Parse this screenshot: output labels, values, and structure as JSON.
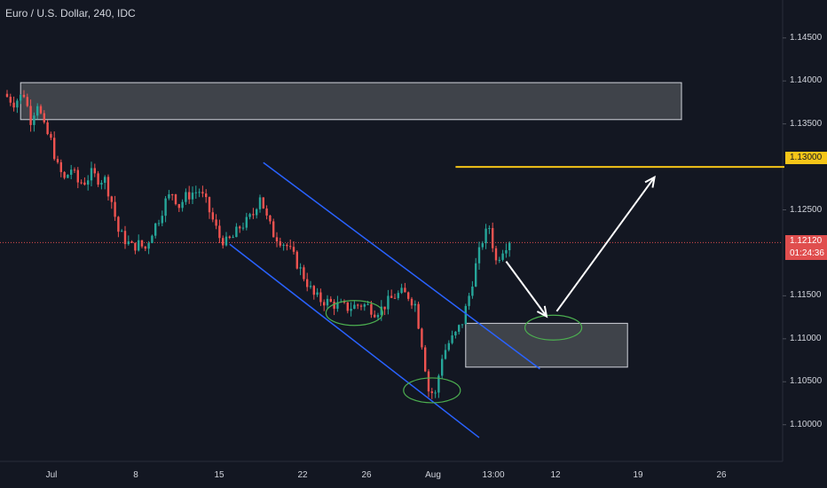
{
  "chart_data": {
    "type": "candlestick",
    "title": "Euro / U.S. Dollar, 240, IDC",
    "ylim": [
      1.0978,
      1.14735
    ],
    "y_ticks": [
      "1.14500",
      "1.14000",
      "1.13500",
      "1.13000",
      "1.12500",
      "1.12120",
      "1.11500",
      "1.11000",
      "1.10500",
      "1.10000"
    ],
    "x_ticks": [
      "Jul",
      "8",
      "15",
      "22",
      "26",
      "Aug",
      "13:00",
      "12",
      "19",
      "26"
    ],
    "grid": false,
    "series": [
      {
        "price_path": [
          [
            0,
            1.1385
          ],
          [
            3,
            1.1375
          ],
          [
            6,
            1.1385
          ],
          [
            8,
            1.1355
          ],
          [
            10,
            1.1375
          ],
          [
            12,
            1.1345
          ],
          [
            14,
            1.133
          ],
          [
            16,
            1.13
          ],
          [
            18,
            1.1285
          ],
          [
            20,
            1.1298
          ],
          [
            22,
            1.1282
          ],
          [
            24,
            1.1283
          ],
          [
            26,
            1.1292
          ],
          [
            28,
            1.1286
          ],
          [
            30,
            1.1285
          ],
          [
            32,
            1.126
          ],
          [
            34,
            1.1225
          ],
          [
            36,
            1.1215
          ],
          [
            38,
            1.1207
          ],
          [
            40,
            1.121
          ],
          [
            42,
            1.1205
          ],
          [
            44,
            1.1225
          ],
          [
            46,
            1.124
          ],
          [
            48,
            1.126
          ],
          [
            50,
            1.127
          ],
          [
            52,
            1.1255
          ],
          [
            54,
            1.1265
          ],
          [
            56,
            1.127
          ],
          [
            58,
            1.1272
          ],
          [
            60,
            1.1258
          ],
          [
            62,
            1.1238
          ],
          [
            64,
            1.1218
          ],
          [
            66,
            1.1212
          ],
          [
            68,
            1.1218
          ],
          [
            70,
            1.123
          ],
          [
            72,
            1.1236
          ],
          [
            74,
            1.1245
          ],
          [
            76,
            1.1268
          ],
          [
            78,
            1.124
          ],
          [
            80,
            1.1222
          ],
          [
            82,
            1.1215
          ],
          [
            84,
            1.1208
          ],
          [
            86,
            1.1195
          ],
          [
            88,
            1.118
          ],
          [
            90,
            1.1165
          ],
          [
            92,
            1.115
          ],
          [
            94,
            1.1145
          ],
          [
            96,
            1.1143
          ],
          [
            98,
            1.114
          ],
          [
            100,
            1.1138
          ],
          [
            102,
            1.1136
          ],
          [
            104,
            1.1138
          ],
          [
            106,
            1.114
          ],
          [
            108,
            1.1138
          ],
          [
            110,
            1.1132
          ],
          [
            112,
            1.1135
          ],
          [
            114,
            1.1143
          ],
          [
            116,
            1.115
          ],
          [
            118,
            1.1153
          ],
          [
            120,
            1.115
          ],
          [
            122,
            1.114
          ],
          [
            124,
            1.1095
          ],
          [
            126,
            1.104
          ],
          [
            128,
            1.1035
          ],
          [
            130,
            1.108
          ],
          [
            132,
            1.1095
          ],
          [
            134,
            1.1105
          ],
          [
            136,
            1.112
          ],
          [
            138,
            1.115
          ],
          [
            140,
            1.1185
          ],
          [
            142,
            1.1215
          ],
          [
            144,
            1.123
          ],
          [
            146,
            1.119
          ],
          [
            148,
            1.1205
          ],
          [
            150,
            1.1215
          ]
        ],
        "up_color": "#26a69a",
        "down_color": "#ef5350"
      }
    ],
    "annotations": {
      "resistance_zone": {
        "x_start": 4,
        "x_end": 200,
        "y_low": 1.1355,
        "y_high": 1.1398
      },
      "demand_zone": {
        "x_start": 136,
        "x_end": 184,
        "y_low": 1.1067,
        "y_high": 1.1118
      },
      "target_level": {
        "value": 1.13,
        "x_start": 133
      },
      "last_price_line": {
        "value": 1.1212
      },
      "channel": {
        "upper": [
          [
            76,
            1.1305
          ],
          [
            158,
            1.1065
          ]
        ],
        "lower": [
          [
            66,
            1.121
          ],
          [
            140,
            1.0985
          ]
        ]
      },
      "swing_low_ellipses": [
        [
          103,
          1.113
        ],
        [
          126,
          1.104
        ],
        [
          162,
          1.1113
        ]
      ],
      "path_arrows": [
        [
          [
            148,
            1.119
          ],
          [
            160,
            1.1126
          ]
        ],
        [
          [
            163,
            1.1132
          ],
          [
            192,
            1.1288
          ]
        ]
      ]
    },
    "last_price_label": "1.12120",
    "countdown_label": "01:24:36",
    "level_label": "1.13000",
    "colors": {
      "background": "#131722",
      "up": "#26a69a",
      "down": "#ef5350",
      "level": "#f5c518",
      "channel": "#2962ff",
      "ellipse": "#4caf50",
      "arrow": "#ffffff",
      "zone": "#5d6066",
      "last_price": "#e04e4e"
    }
  }
}
